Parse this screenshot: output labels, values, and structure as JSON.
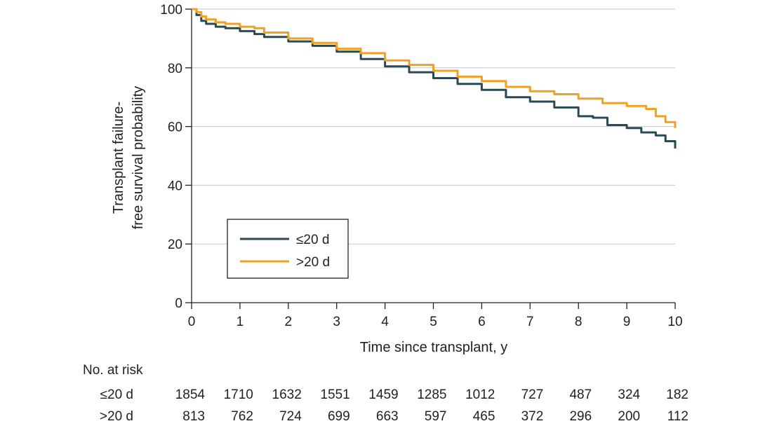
{
  "chart_data": {
    "type": "line",
    "subtype": "kaplan-meier step",
    "xlabel": "Time since transplant, y",
    "ylabel_lines": [
      "Transplant failure-",
      "free survival probability"
    ],
    "x_ticks": [
      0,
      1,
      2,
      3,
      4,
      5,
      6,
      7,
      8,
      9,
      10
    ],
    "y_ticks": [
      0,
      20,
      40,
      60,
      80,
      100
    ],
    "xlim": [
      0,
      10
    ],
    "ylim": [
      0,
      100
    ],
    "grid": "horizontal",
    "legend_position": "lower-left",
    "series": [
      {
        "name": "≤20 d",
        "color": "#2a4b55",
        "x": [
          0,
          0.1,
          0.2,
          0.3,
          0.5,
          0.7,
          1.0,
          1.3,
          1.5,
          2.0,
          2.5,
          3.0,
          3.5,
          4.0,
          4.5,
          5.0,
          5.5,
          6.0,
          6.5,
          7.0,
          7.5,
          8.0,
          8.3,
          8.6,
          9.0,
          9.3,
          9.6,
          9.8,
          10.0
        ],
        "y": [
          100,
          98,
          96,
          95,
          94,
          93.5,
          92.5,
          91.5,
          90.5,
          89,
          87.5,
          85.5,
          83,
          80.5,
          78.5,
          76.5,
          74.5,
          72.5,
          70,
          68.5,
          66.5,
          63.5,
          63,
          60.5,
          59.5,
          58,
          57,
          55,
          52.5
        ]
      },
      {
        "name": ">20 d",
        "color": "#f0a121",
        "x": [
          0,
          0.1,
          0.2,
          0.3,
          0.5,
          0.7,
          1.0,
          1.3,
          1.5,
          2.0,
          2.5,
          3.0,
          3.5,
          4.0,
          4.5,
          5.0,
          5.5,
          6.0,
          6.5,
          7.0,
          7.5,
          8.0,
          8.5,
          9.0,
          9.4,
          9.6,
          9.8,
          10.0
        ],
        "y": [
          100,
          99,
          97.5,
          96.5,
          95.5,
          95,
          94,
          93.5,
          92,
          90,
          88.5,
          86.5,
          85,
          82.5,
          81,
          79,
          77,
          75.5,
          73.5,
          72,
          71,
          69.5,
          68,
          67,
          66,
          63.5,
          61.5,
          59.5
        ]
      }
    ],
    "risk_table": {
      "title": "No. at risk",
      "rows": [
        {
          "label": "≤20 d",
          "values": [
            1854,
            1710,
            1632,
            1551,
            1459,
            1285,
            1012,
            727,
            487,
            324,
            182
          ]
        },
        {
          "label": ">20 d",
          "values": [
            813,
            762,
            724,
            699,
            663,
            597,
            465,
            372,
            296,
            200,
            112
          ]
        }
      ]
    }
  }
}
